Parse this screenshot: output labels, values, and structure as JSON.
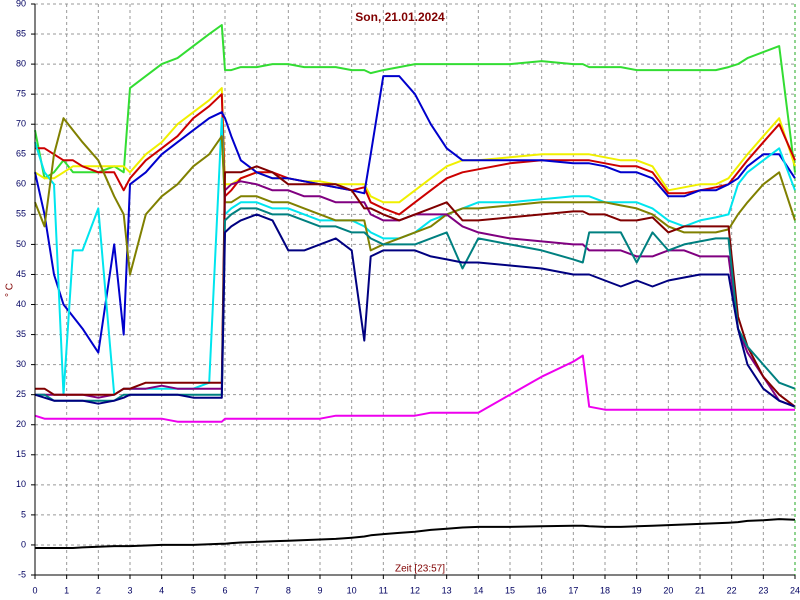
{
  "chart_data": {
    "type": "line",
    "title": "Son, 21.01.2024",
    "x_label": "Zeit [23:57]",
    "y_label": "° C",
    "xlim": [
      0,
      24
    ],
    "ylim": [
      -5,
      90
    ],
    "xticks": [
      0,
      1,
      2,
      3,
      4,
      5,
      6,
      7,
      8,
      9,
      10,
      11,
      12,
      13,
      14,
      15,
      16,
      17,
      18,
      19,
      20,
      21,
      22,
      23,
      24
    ],
    "yticks": [
      -5,
      0,
      5,
      10,
      15,
      20,
      25,
      30,
      35,
      40,
      45,
      50,
      55,
      60,
      65,
      70,
      75,
      80,
      85,
      90
    ],
    "grid": true,
    "x": [
      0,
      0.3,
      0.6,
      0.9,
      1.2,
      1.5,
      2,
      2.5,
      2.8,
      3,
      3.5,
      4,
      4.5,
      5,
      5.5,
      5.9,
      6,
      6.2,
      6.5,
      7,
      7.5,
      8,
      8.5,
      9,
      9.5,
      10,
      10.4,
      10.6,
      11,
      11.5,
      12,
      12.5,
      13,
      13.5,
      14,
      15,
      16,
      17,
      17.3,
      17.5,
      18,
      18.5,
      19,
      19.5,
      20,
      20.5,
      21,
      21.5,
      21.9,
      22.2,
      22.5,
      23,
      23.5,
      24
    ],
    "series": [
      {
        "color": "#33dd33",
        "values": [
          69,
          61,
          62,
          64,
          62,
          62,
          62,
          63,
          62,
          76,
          78,
          80,
          81,
          83,
          85,
          86.5,
          79,
          79,
          79.5,
          79.5,
          80,
          80,
          79.5,
          79.5,
          79.5,
          79,
          79,
          78.5,
          79,
          79.5,
          80,
          80,
          80,
          80,
          80,
          80,
          80.5,
          80,
          80,
          79.5,
          79.5,
          79.5,
          79,
          79,
          79,
          79,
          79,
          79,
          79.5,
          80,
          81,
          82,
          83,
          62
        ]
      },
      {
        "color": "#f0f000",
        "values": [
          62,
          61,
          61,
          62,
          63,
          63,
          63,
          63,
          63,
          62,
          65,
          67,
          70,
          72,
          74,
          76,
          60,
          60,
          61,
          62,
          61,
          61,
          60.5,
          60.5,
          60,
          60,
          60,
          58,
          57,
          57,
          59,
          61,
          63,
          64,
          64,
          64.5,
          65,
          65,
          65,
          65,
          64.5,
          64,
          64,
          63,
          59,
          59.5,
          60,
          60,
          61,
          63,
          65,
          68,
          71,
          63
        ]
      },
      {
        "color": "#cc0000",
        "values": [
          66,
          66,
          65,
          64,
          64,
          63,
          62,
          62,
          59,
          61,
          64,
          66,
          68,
          71,
          73,
          75,
          58,
          59,
          61,
          62,
          62,
          61,
          60.5,
          60,
          59.5,
          59,
          59.5,
          57,
          56,
          55,
          57,
          59,
          61,
          62,
          62.5,
          63.5,
          64,
          64,
          64,
          64,
          63.5,
          63,
          63,
          62,
          58.5,
          58.5,
          59,
          59.5,
          60,
          62,
          64,
          67,
          70,
          64
        ]
      },
      {
        "color": "#0000cc",
        "values": [
          62,
          55,
          45,
          40,
          38,
          36,
          32,
          50,
          35,
          60,
          62,
          65,
          67,
          69,
          71,
          72,
          71,
          68,
          64,
          62,
          61,
          61,
          60.5,
          60,
          59.5,
          59,
          58.5,
          65,
          78,
          78,
          75,
          70,
          66,
          64,
          64,
          64,
          64,
          63.5,
          63.5,
          63.5,
          63,
          62,
          62,
          61,
          58,
          58,
          59,
          59,
          60,
          61,
          63,
          65,
          65,
          61
        ]
      },
      {
        "color": "#00e5ee",
        "values": [
          67,
          62,
          60,
          25,
          49,
          49,
          56,
          25,
          26,
          26,
          26,
          26,
          26,
          26,
          27,
          71,
          55,
          56,
          57,
          57,
          56,
          56,
          55,
          54,
          54,
          54,
          53,
          52,
          51,
          51,
          52,
          54,
          55,
          56,
          57,
          57,
          57.5,
          58,
          58,
          58,
          57,
          57,
          57,
          56,
          54,
          53,
          54,
          54.5,
          55,
          60,
          62,
          64,
          66,
          59
        ]
      },
      {
        "color": "#808000",
        "values": [
          57,
          53,
          65,
          71,
          69,
          67,
          64,
          58,
          55,
          45,
          55,
          58,
          60,
          63,
          65,
          68,
          57,
          57,
          58,
          58,
          57,
          57,
          56,
          55,
          54,
          54,
          54,
          49,
          50,
          51,
          52,
          53,
          55,
          56,
          56,
          56.5,
          57,
          57,
          57,
          57,
          57,
          56.5,
          56,
          55,
          53,
          52,
          52,
          52,
          52.5,
          55,
          57,
          60,
          62,
          54
        ]
      },
      {
        "color": "#800080",
        "values": [
          25,
          25,
          25,
          25,
          25,
          25,
          24.5,
          25,
          26,
          26,
          26,
          26.5,
          26,
          26,
          26,
          26,
          59,
          60,
          60.5,
          60,
          59,
          59,
          58,
          58,
          57,
          57,
          57,
          55,
          54,
          54,
          55,
          55,
          55,
          53,
          52,
          51,
          50.5,
          50,
          50,
          49,
          49,
          49,
          48,
          48,
          49,
          49,
          48,
          48,
          48,
          36,
          32,
          28,
          24,
          23
        ]
      },
      {
        "color": "#800000",
        "values": [
          26,
          26,
          25,
          25,
          25,
          25,
          25,
          25,
          26,
          26,
          27,
          27,
          27,
          27,
          27,
          27,
          62,
          62,
          62,
          63,
          62,
          60,
          60,
          60,
          60,
          59,
          56,
          56,
          55,
          54,
          55,
          56,
          57,
          54,
          54,
          54.5,
          55,
          55.5,
          55.5,
          55,
          55,
          54,
          54,
          54.5,
          52,
          53,
          53,
          53,
          53,
          38,
          33,
          28,
          25,
          23
        ]
      },
      {
        "color": "#008080",
        "values": [
          25,
          25,
          24,
          24,
          24,
          24,
          24,
          24,
          25,
          25,
          25,
          25,
          25,
          25,
          25,
          25,
          54,
          55,
          56,
          56,
          55,
          55,
          54,
          53,
          53,
          52,
          52,
          51,
          50,
          50,
          50,
          51,
          52,
          46,
          51,
          50,
          49,
          47.5,
          47,
          52,
          52,
          52,
          47,
          52,
          49,
          50,
          50.5,
          51,
          51,
          36,
          33,
          30,
          27,
          26
        ]
      },
      {
        "color": "#000080",
        "values": [
          25,
          24.5,
          24,
          24,
          24,
          24,
          23.5,
          24,
          24.5,
          25,
          25,
          25,
          25,
          24.5,
          24.5,
          24.5,
          52,
          53,
          54,
          55,
          54,
          49,
          49,
          50,
          51,
          49,
          34,
          48,
          49,
          49,
          49,
          48,
          47.5,
          47,
          47,
          46.5,
          46,
          45,
          45,
          45,
          44,
          43,
          44,
          43,
          44,
          44.5,
          45,
          45,
          45,
          36,
          30,
          26,
          24,
          23
        ]
      },
      {
        "color": "#ee00ee",
        "values": [
          21.5,
          21,
          21,
          21,
          21,
          21,
          21,
          21,
          21,
          21,
          21,
          21,
          20.5,
          20.5,
          20.5,
          20.5,
          21,
          21,
          21,
          21,
          21,
          21,
          21,
          21,
          21.5,
          21.5,
          21.5,
          21.5,
          21.5,
          21.5,
          21.5,
          22,
          22,
          22,
          22,
          25,
          28,
          30.5,
          31.5,
          23,
          22.5,
          22.5,
          22.5,
          22.5,
          22.5,
          22.5,
          22.5,
          22.5,
          22.5,
          22.5,
          22.5,
          22.5,
          22.5,
          22.5
        ]
      },
      {
        "color": "#000000",
        "values": [
          -0.5,
          -0.5,
          -0.5,
          -0.5,
          -0.5,
          -0.4,
          -0.3,
          -0.2,
          -0.2,
          -0.2,
          -0.1,
          0,
          0,
          0,
          0.1,
          0.2,
          0.2,
          0.3,
          0.4,
          0.5,
          0.6,
          0.7,
          0.8,
          0.9,
          1.0,
          1.2,
          1.4,
          1.6,
          1.8,
          2,
          2.2,
          2.5,
          2.7,
          2.9,
          3,
          3,
          3.1,
          3.2,
          3.2,
          3.1,
          3,
          3,
          3.1,
          3.2,
          3.3,
          3.4,
          3.5,
          3.6,
          3.7,
          3.8,
          4,
          4.1,
          4.3,
          4.2
        ]
      }
    ]
  }
}
